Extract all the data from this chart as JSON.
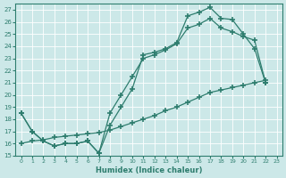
{
  "xlabel": "Humidex (Indice chaleur)",
  "bg_color": "#cce8e8",
  "line_color": "#2e7d6e",
  "grid_color": "#b0d0d0",
  "xlim": [
    -0.5,
    23.5
  ],
  "ylim": [
    15,
    27.5
  ],
  "yticks": [
    15,
    16,
    17,
    18,
    19,
    20,
    21,
    22,
    23,
    24,
    25,
    26,
    27
  ],
  "xticks": [
    0,
    1,
    2,
    3,
    4,
    5,
    6,
    7,
    8,
    9,
    10,
    11,
    12,
    13,
    14,
    15,
    16,
    17,
    18,
    19,
    20,
    21,
    22,
    23
  ],
  "line1_x": [
    0,
    1,
    2,
    3,
    4,
    5,
    6,
    7,
    8,
    9,
    10,
    11,
    12,
    13,
    14,
    15,
    16,
    17,
    18,
    19,
    20,
    21,
    22
  ],
  "line1_y": [
    18.5,
    17.0,
    16.2,
    15.8,
    16.0,
    16.0,
    16.2,
    15.2,
    17.5,
    19.0,
    20.5,
    23.3,
    23.5,
    23.8,
    24.3,
    26.5,
    26.8,
    27.2,
    26.3,
    26.2,
    25.0,
    23.8,
    21.0
  ],
  "line2_x": [
    0,
    1,
    2,
    3,
    4,
    5,
    6,
    7,
    8,
    9,
    10,
    11,
    12,
    13,
    14,
    15,
    16,
    17,
    18,
    19,
    20,
    21,
    22
  ],
  "line2_y": [
    18.5,
    17.0,
    16.2,
    15.8,
    16.0,
    16.0,
    16.2,
    15.2,
    18.5,
    20.0,
    21.5,
    23.0,
    23.3,
    23.7,
    24.2,
    25.5,
    25.8,
    26.3,
    25.5,
    25.2,
    24.8,
    24.5,
    21.0
  ],
  "line3_x": [
    0,
    1,
    2,
    3,
    4,
    5,
    6,
    7,
    8,
    9,
    10,
    11,
    12,
    13,
    14,
    15,
    16,
    17,
    18,
    19,
    20,
    21,
    22
  ],
  "line3_y": [
    16.0,
    16.2,
    16.3,
    16.5,
    16.6,
    16.7,
    16.8,
    16.9,
    17.1,
    17.4,
    17.7,
    18.0,
    18.3,
    18.7,
    19.0,
    19.4,
    19.8,
    20.2,
    20.4,
    20.6,
    20.8,
    21.0,
    21.2
  ]
}
